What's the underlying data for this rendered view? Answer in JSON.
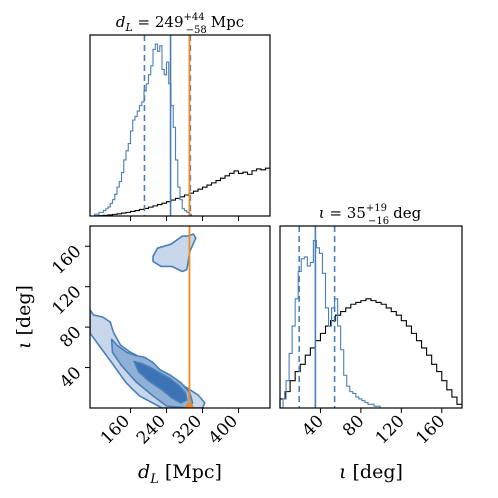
{
  "chart_data": [
    {
      "type": "histogram",
      "panel": "top-left",
      "title_parts": {
        "lhs": "d",
        "lhs_sub": "L",
        "eq": " = ",
        "value": "249",
        "plus": "+44",
        "minus": "−58",
        "unit": "Mpc"
      },
      "xlim": [
        70,
        470
      ],
      "ylim": [
        0,
        1.0
      ],
      "posterior": {
        "bin_edges_start": 70,
        "bin_width": 5,
        "counts": [
          0.0,
          0.0,
          0.01,
          0.01,
          0.02,
          0.02,
          0.03,
          0.04,
          0.05,
          0.07,
          0.09,
          0.12,
          0.16,
          0.19,
          0.24,
          0.31,
          0.36,
          0.4,
          0.47,
          0.53,
          0.55,
          0.58,
          0.61,
          0.63,
          0.69,
          0.73,
          0.78,
          0.83,
          0.92,
          0.95,
          0.91,
          0.94,
          0.81,
          0.78,
          0.85,
          0.73,
          0.61,
          0.49,
          0.31,
          0.16,
          0.09,
          0.04,
          0.03,
          0.02,
          0.01,
          0.0,
          0.0,
          0.0,
          0.0,
          0.0,
          0.0,
          0.0,
          0.0,
          0.0,
          0.0,
          0.0,
          0.0,
          0.0,
          0.0,
          0.0,
          0.0,
          0.0,
          0.0,
          0.0,
          0.0,
          0.0,
          0.0,
          0.0,
          0.0,
          0.0,
          0.0,
          0.0,
          0.0,
          0.0,
          0.0,
          0.0,
          0.0,
          0.0,
          0.0,
          0.0
        ]
      },
      "prior": {
        "bin_edges_start": 70,
        "bin_width": 10,
        "counts": [
          0.0,
          0.001,
          0.002,
          0.004,
          0.006,
          0.009,
          0.012,
          0.016,
          0.02,
          0.025,
          0.03,
          0.036,
          0.042,
          0.049,
          0.056,
          0.063,
          0.071,
          0.079,
          0.088,
          0.097,
          0.106,
          0.116,
          0.126,
          0.137,
          0.148,
          0.159,
          0.171,
          0.183,
          0.196,
          0.209,
          0.222,
          0.236,
          0.249,
          0.235,
          0.242,
          0.23,
          0.25,
          0.26,
          0.255,
          0.264
        ]
      },
      "median": 249,
      "interval": [
        191,
        293
      ],
      "injection": 291
    },
    {
      "type": "histogram",
      "panel": "bottom-right",
      "title_parts": {
        "lhs": "ι",
        "eq": " = ",
        "value": "35",
        "plus": "+19",
        "minus": "−16",
        "unit": "deg"
      },
      "xlim": [
        0,
        180
      ],
      "ylim": [
        0,
        1.0
      ],
      "posterior": {
        "bin_edges_start": 0,
        "bin_width": 3,
        "counts": [
          0.0,
          0.05,
          0.15,
          0.3,
          0.45,
          0.6,
          0.75,
          0.82,
          0.83,
          0.78,
          0.8,
          0.92,
          0.88,
          0.85,
          0.74,
          0.55,
          0.45,
          0.55,
          0.6,
          0.45,
          0.32,
          0.18,
          0.12,
          0.09,
          0.08,
          0.06,
          0.05,
          0.04,
          0.03,
          0.02,
          0.02,
          0.01,
          0.01,
          0.0,
          0.0,
          0.0,
          0.0,
          0.0,
          0.0,
          0.0,
          0.0,
          0.0,
          0.0,
          0.0,
          0.0,
          0.0,
          0.0,
          0.0,
          0.0,
          0.0,
          0.0,
          0.0,
          0.0,
          0.0,
          0.0,
          0.0,
          0.0,
          0.0,
          0.0,
          0.0
        ]
      },
      "prior": {
        "bin_edges_start": 0,
        "bin_width": 5,
        "counts": [
          0.05,
          0.09,
          0.15,
          0.2,
          0.24,
          0.29,
          0.33,
          0.37,
          0.41,
          0.45,
          0.48,
          0.51,
          0.53,
          0.55,
          0.57,
          0.58,
          0.59,
          0.6,
          0.59,
          0.58,
          0.57,
          0.55,
          0.53,
          0.51,
          0.48,
          0.45,
          0.41,
          0.37,
          0.33,
          0.29,
          0.24,
          0.2,
          0.15,
          0.1,
          0.06,
          0.02
        ]
      },
      "median": 35,
      "interval": [
        19,
        54
      ]
    },
    {
      "type": "contour",
      "panel": "bottom-left",
      "x": "dL",
      "y": "iota",
      "xlim": [
        70,
        470
      ],
      "ylim": [
        0,
        180
      ],
      "injection": [
        291,
        0
      ],
      "levels": [
        {
          "shade": "#c8d7ea",
          "points": [
            [
              70,
              97
            ],
            [
              78,
              92
            ],
            [
              98,
              90
            ],
            [
              115,
              85
            ],
            [
              122,
              75
            ],
            [
              138,
              62
            ],
            [
              157,
              56
            ],
            [
              178,
              51
            ],
            [
              200,
              45
            ],
            [
              220,
              35
            ],
            [
              255,
              28
            ],
            [
              285,
              20
            ],
            [
              310,
              13
            ],
            [
              325,
              5
            ],
            [
              320,
              0
            ],
            [
              230,
              0
            ],
            [
              180,
              12
            ],
            [
              150,
              25
            ],
            [
              118,
              45
            ],
            [
              70,
              74
            ]
          ]
        },
        {
          "shade": "#c8d7ea",
          "points": [
            [
              210,
              150
            ],
            [
              220,
              158
            ],
            [
              250,
              162
            ],
            [
              275,
              170
            ],
            [
              285,
              170
            ],
            [
              300,
              172
            ],
            [
              305,
              168
            ],
            [
              292,
              155
            ],
            [
              285,
              137
            ],
            [
              275,
              135
            ],
            [
              252,
              140
            ],
            [
              228,
              140
            ],
            [
              210,
              145
            ]
          ]
        },
        {
          "shade": "#8fb1d7",
          "points": [
            [
              118,
              68
            ],
            [
              130,
              62
            ],
            [
              152,
              55
            ],
            [
              170,
              52
            ],
            [
              192,
              50
            ],
            [
              210,
              45
            ],
            [
              225,
              38
            ],
            [
              250,
              32
            ],
            [
              272,
              25
            ],
            [
              292,
              15
            ],
            [
              298,
              5
            ],
            [
              288,
              0
            ],
            [
              240,
              2
            ],
            [
              210,
              12
            ],
            [
              172,
              26
            ],
            [
              140,
              42
            ],
            [
              120,
              55
            ]
          ]
        },
        {
          "shade": "#3b73b5",
          "points": [
            [
              168,
              46
            ],
            [
              185,
              44
            ],
            [
              205,
              40
            ],
            [
              228,
              34
            ],
            [
              248,
              29
            ],
            [
              268,
              22
            ],
            [
              282,
              15
            ],
            [
              285,
              8
            ],
            [
              272,
              5
            ],
            [
              252,
              10
            ],
            [
              230,
              18
            ],
            [
              200,
              27
            ],
            [
              178,
              36
            ]
          ]
        }
      ]
    }
  ],
  "axes": {
    "xlabel_parts": {
      "sym": "d",
      "sub": "L",
      "unit": "[Mpc]"
    },
    "ylabel_parts": {
      "sym": "ι",
      "unit": "[deg]"
    },
    "xlabel2_parts": {
      "sym": "ι",
      "unit": "[deg]"
    },
    "dl_ticks": [
      "160",
      "240",
      "320",
      "400"
    ],
    "dl_tick_values": [
      160,
      240,
      320,
      400
    ],
    "iota_ticks": [
      "40",
      "80",
      "120",
      "160"
    ],
    "iota_tick_values": [
      40,
      80,
      120,
      160
    ]
  },
  "colors": {
    "posterior": "#4a7fb8",
    "prior": "#000000",
    "injection": "#f08a24",
    "frame": "#000000"
  }
}
